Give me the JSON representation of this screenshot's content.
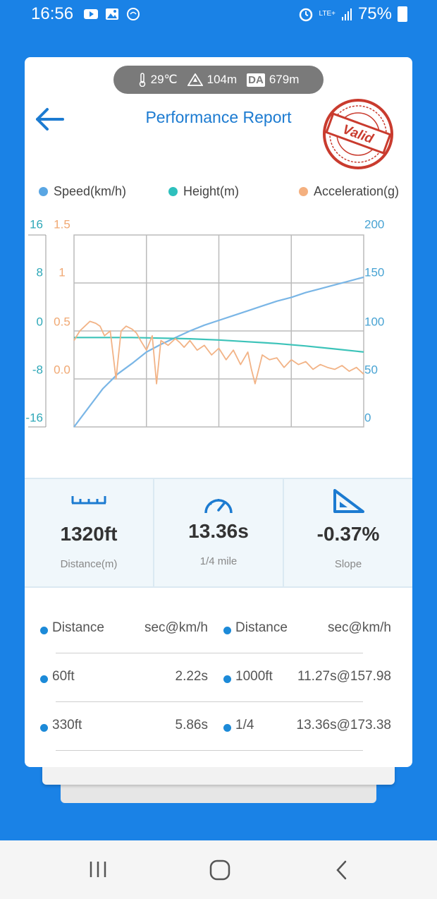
{
  "status_bar": {
    "time": "16:56",
    "network": "LTE+",
    "battery": "75%",
    "icons": [
      "youtube-icon",
      "gallery-icon",
      "sync-icon",
      "alarm-icon",
      "signal-icon",
      "battery-icon"
    ]
  },
  "conditions": {
    "temperature": "29℃",
    "altitude": "104m",
    "da_label": "DA",
    "density_altitude": "679m"
  },
  "header": {
    "title": "Performance Report",
    "stamp_text": "Valid"
  },
  "legend": [
    {
      "label": "Speed(km/h)",
      "color": "#5aa6e3"
    },
    {
      "label": "Height(m)",
      "color": "#2ec0bd"
    },
    {
      "label": "Acceleration(g)",
      "color": "#f4b07f"
    }
  ],
  "chart_data": {
    "type": "line",
    "axes": {
      "height_ticks": [
        "16",
        "8",
        "0",
        "-8",
        "-16"
      ],
      "accel_ticks": [
        "1.5",
        "1",
        "0.5",
        "0.0"
      ],
      "speed_ticks": [
        "200",
        "150",
        "100",
        "50",
        "0"
      ]
    },
    "ylim_speed": [
      0,
      200
    ],
    "ylim_height": [
      -16,
      16
    ],
    "ylim_accel": [
      -0.5,
      1.5
    ],
    "grid": true,
    "legend_position": "top",
    "series": [
      {
        "name": "Speed(km/h)",
        "axis": "speed",
        "color": "#7ab6e6",
        "x": [
          0,
          2,
          4,
          6,
          8,
          10,
          12,
          14,
          16,
          18,
          20,
          22,
          24,
          26,
          28,
          30,
          32,
          34,
          36,
          38,
          40
        ],
        "values": [
          0,
          20,
          40,
          55,
          66,
          78,
          86,
          93,
          100,
          106,
          111,
          116,
          121,
          126,
          131,
          135,
          140,
          144,
          148,
          152,
          156
        ]
      },
      {
        "name": "Height(m)",
        "axis": "height",
        "color": "#3cc3b9",
        "x": [
          0,
          4,
          8,
          12,
          16,
          20,
          24,
          28,
          32,
          36,
          40
        ],
        "values": [
          -1.1,
          -1.1,
          -1.1,
          -1.2,
          -1.3,
          -1.5,
          -1.8,
          -2.1,
          -2.5,
          -3.0,
          -3.5
        ]
      },
      {
        "name": "Acceleration(g)",
        "axis": "accel",
        "color": "#f2b386",
        "x": [
          0,
          0.8,
          1.5,
          2.2,
          3,
          3.6,
          4.2,
          5,
          5.8,
          6.5,
          7.2,
          8,
          8.6,
          9.2,
          10,
          10.8,
          11.4,
          12,
          13,
          14,
          14.6,
          15.2,
          16,
          17,
          18,
          19,
          20,
          21,
          22,
          23,
          24,
          24.5,
          25,
          26,
          27,
          28,
          29,
          30,
          31,
          32,
          33,
          34,
          35,
          36,
          37,
          38,
          39,
          40
        ],
        "values": [
          0.4,
          0.5,
          0.55,
          0.6,
          0.58,
          0.55,
          0.45,
          0.5,
          0.0,
          0.5,
          0.55,
          0.52,
          0.48,
          0.4,
          0.3,
          0.45,
          -0.05,
          0.4,
          0.35,
          0.42,
          0.38,
          0.33,
          0.4,
          0.3,
          0.35,
          0.25,
          0.32,
          0.2,
          0.3,
          0.15,
          0.28,
          0.1,
          -0.05,
          0.25,
          0.2,
          0.22,
          0.12,
          0.2,
          0.15,
          0.18,
          0.1,
          0.15,
          0.12,
          0.1,
          0.14,
          0.08,
          0.12,
          0.05
        ]
      }
    ]
  },
  "stats": [
    {
      "icon": "ruler-icon",
      "value": "1320ft",
      "label": "Distance(m)"
    },
    {
      "icon": "speedometer-icon",
      "value": "13.36s",
      "label": "1/4 mile"
    },
    {
      "icon": "slope-icon",
      "value": "-0.37%",
      "label": "Slope"
    }
  ],
  "splits": {
    "headers": {
      "distance": "Distance",
      "result": "sec@km/h"
    },
    "left": [
      {
        "distance": "60ft",
        "result": "2.22s"
      },
      {
        "distance": "330ft",
        "result": "5.86s"
      }
    ],
    "right": [
      {
        "distance": "1000ft",
        "result": "11.27s@157.98"
      },
      {
        "distance": "1/4",
        "result": "13.36s@173.38"
      }
    ]
  },
  "nav": [
    "recents-icon",
    "home-icon",
    "back-icon"
  ]
}
